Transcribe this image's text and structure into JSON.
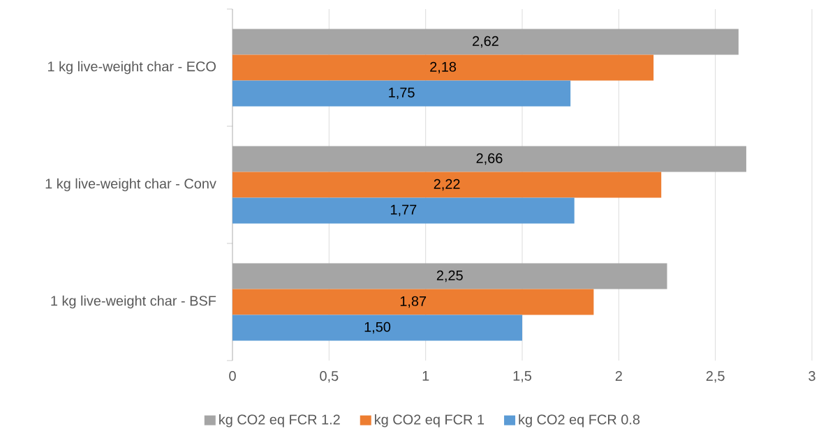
{
  "chart_data": {
    "type": "bar",
    "orientation": "horizontal",
    "categories": [
      "1 kg live-weight char - ECO",
      "1 kg live-weight char - Conv",
      "1 kg live-weight char - BSF"
    ],
    "series": [
      {
        "name": "kg CO2 eq FCR 1.2",
        "color": "#a5a5a5",
        "values": [
          2.62,
          2.66,
          2.25
        ],
        "value_labels": [
          "2,62",
          "2,66",
          "2,25"
        ]
      },
      {
        "name": "kg CO2 eq FCR 1",
        "color": "#ed7d31",
        "values": [
          2.18,
          2.22,
          1.87
        ],
        "value_labels": [
          "2,18",
          "2,22",
          "1,87"
        ]
      },
      {
        "name": "kg CO2 eq FCR 0.8",
        "color": "#5b9bd5",
        "values": [
          1.75,
          1.77,
          1.5
        ],
        "value_labels": [
          "1,75",
          "1,77",
          "1,50"
        ]
      }
    ],
    "xlim": [
      0,
      3
    ],
    "xticks": [
      0,
      {
        "value": 0.5,
        "label": "0,5"
      },
      1,
      {
        "value": 1.5,
        "label": "1,5"
      },
      2,
      {
        "value": 2.5,
        "label": "2,5"
      },
      3
    ],
    "grid": "x",
    "legend": "bottom"
  }
}
